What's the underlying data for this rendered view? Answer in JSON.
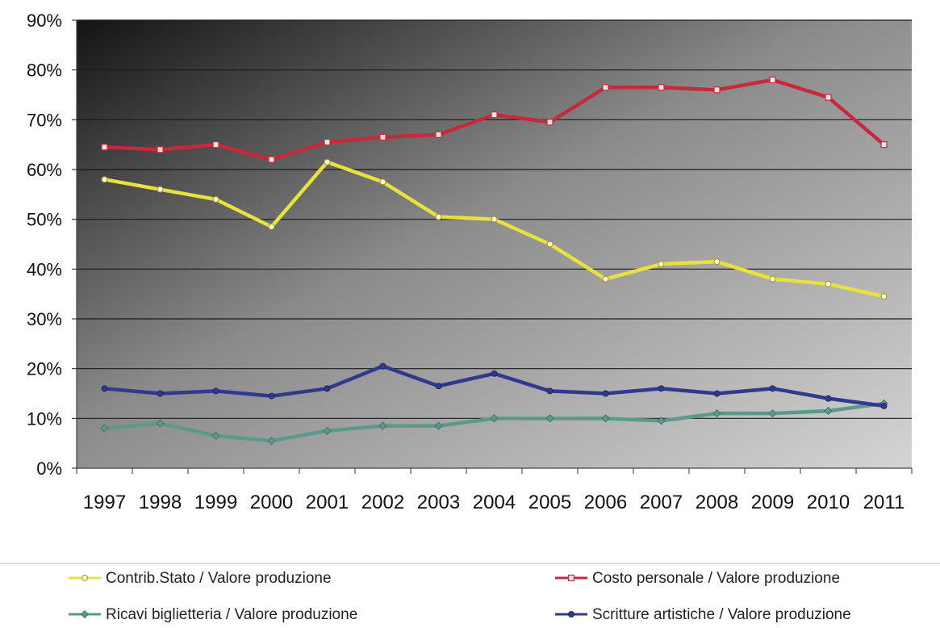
{
  "chart_data": {
    "type": "line",
    "categories": [
      "1997",
      "1998",
      "1999",
      "2000",
      "2001",
      "2002",
      "2003",
      "2004",
      "2005",
      "2006",
      "2007",
      "2008",
      "2009",
      "2010",
      "2011"
    ],
    "ylim": [
      0,
      90
    ],
    "y_ticks": [
      "0%",
      "10%",
      "20%",
      "30%",
      "40%",
      "50%",
      "60%",
      "70%",
      "80%",
      "90%"
    ],
    "y_tick_values": [
      0,
      10,
      20,
      30,
      40,
      50,
      60,
      70,
      80,
      90
    ],
    "grid": true,
    "legend_position": "bottom",
    "series": [
      {
        "name": "Contrib.Stato / Valore produzione",
        "color": "#e8e23a",
        "marker": "circle",
        "values": [
          58,
          56,
          54,
          48.5,
          61.5,
          57.5,
          50.5,
          50,
          45,
          38,
          41,
          41.5,
          38,
          37,
          34.5
        ]
      },
      {
        "name": "Costo personale / Valore produzione",
        "color": "#c8283c",
        "marker": "square",
        "values": [
          64.5,
          64,
          65,
          62,
          65.5,
          66.5,
          67,
          71,
          69.5,
          76.5,
          76.5,
          76,
          78,
          74.5,
          65
        ]
      },
      {
        "name": "Ricavi biglietteria / Valore produzione",
        "color": "#5a9a8c",
        "marker": "diamond",
        "values": [
          8,
          9,
          6.5,
          5.5,
          7.5,
          8.5,
          8.5,
          10,
          10,
          10,
          9.5,
          11,
          11,
          11.5,
          13
        ]
      },
      {
        "name": "Scritture artistiche / Valore produzione",
        "color": "#2e3a8c",
        "marker": "circle",
        "values": [
          16,
          15,
          15.5,
          14.5,
          16,
          20.5,
          16.5,
          19,
          15.5,
          15,
          16,
          15,
          16,
          14,
          12.5
        ]
      }
    ]
  }
}
